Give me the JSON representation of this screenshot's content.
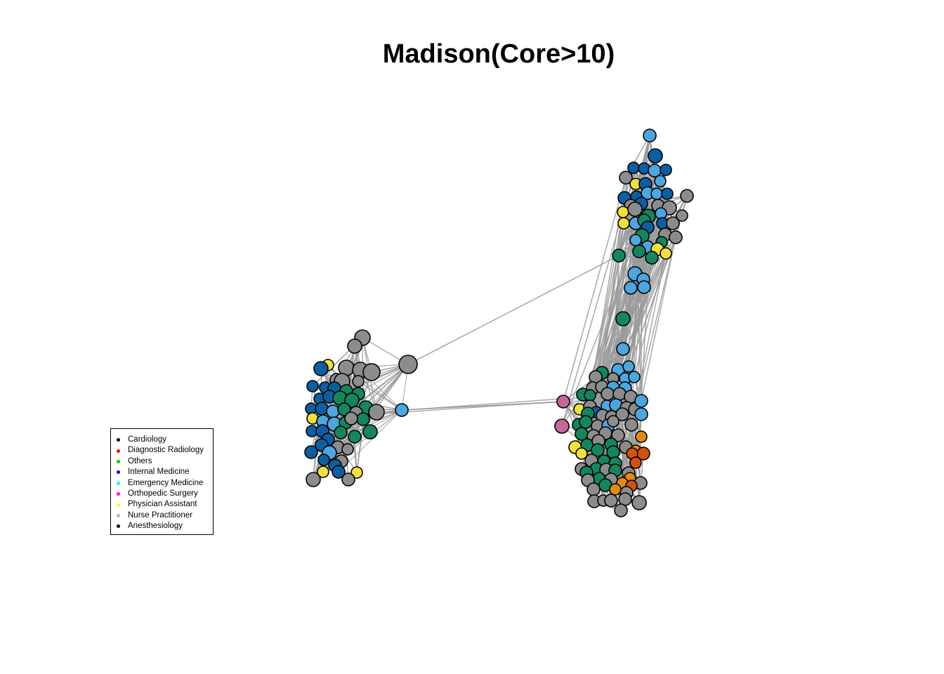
{
  "title": "Madison(Core>10)",
  "legend": {
    "items": [
      {
        "label": "Cardiology",
        "color": "#000000"
      },
      {
        "label": "Diagnostic Radiology",
        "color": "#ff0000"
      },
      {
        "label": "Others",
        "color": "#00cd00"
      },
      {
        "label": "Internal Medicine",
        "color": "#0000ff"
      },
      {
        "label": "Emergency Medicine",
        "color": "#00ffff"
      },
      {
        "label": "Orthopedic Surgery",
        "color": "#ff00ff"
      },
      {
        "label": "Physician Assistant",
        "color": "#ffff00"
      },
      {
        "label": "Nurse Practitioner",
        "color": "#b3b3b3"
      },
      {
        "label": "Anesthesiology",
        "color": "#000000"
      }
    ]
  },
  "node_colors": {
    "gray": "#8c8c8c",
    "green": "#13865c",
    "light_blue": "#4ca6e0",
    "dark_blue": "#0a5fa3",
    "yellow": "#f2e13a",
    "pink": "#c7679e",
    "orange": "#e38a13",
    "red_orange": "#d4520f"
  },
  "edge_color": "#9a9a9a"
}
